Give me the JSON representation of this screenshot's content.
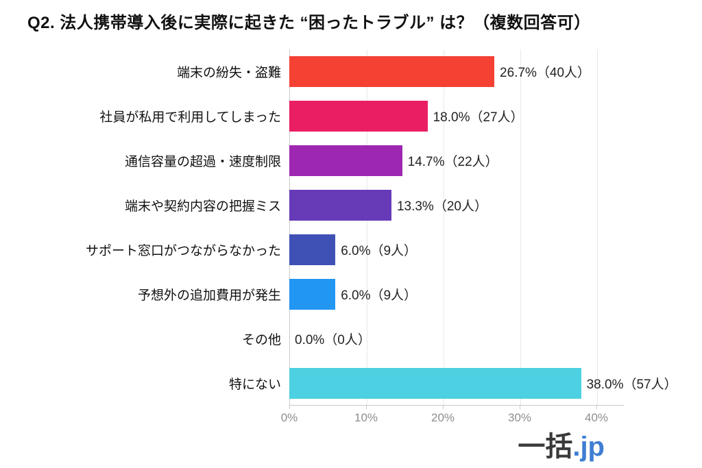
{
  "page": {
    "background": "#ffffff"
  },
  "chart_data": {
    "type": "bar",
    "orientation": "horizontal",
    "title": "Q2. 法人携帯導入後に実際に起きた “困ったトラブル” は？（複数回答可）",
    "categories": [
      "端末の紛失・盗難",
      "社員が私用で利用してしまった",
      "通信容量の超過・速度制限",
      "端末や契約内容の把握ミス",
      "サポート窓口がつながらなかった",
      "予想外の追加費用が発生",
      "その他",
      "特にない"
    ],
    "values": [
      26.7,
      18.0,
      14.7,
      13.3,
      6.0,
      6.0,
      0.0,
      38.0
    ],
    "counts": [
      40,
      27,
      22,
      20,
      9,
      9,
      0,
      57
    ],
    "value_labels": [
      "26.7%（40人）",
      "18.0%（27人）",
      "14.7%（22人）",
      "13.3%（20人）",
      "6.0%（9人）",
      "6.0%（9人）",
      "0.0%（0人）",
      "38.0%（57人）"
    ],
    "bar_colors": [
      "#F44133",
      "#E91E63",
      "#9E27B2",
      "#673AB7",
      "#3F51B5",
      "#2196F3",
      "#CCCCCC",
      "#4DD0E1"
    ],
    "x_tick_labels": [
      "0%",
      "10%",
      "20%",
      "30%",
      "40%"
    ],
    "x_tick_values": [
      0,
      10,
      20,
      30,
      40
    ],
    "xlim": [
      0,
      43.5
    ],
    "grid": true,
    "legend": false,
    "axis_color": "#c9c9c9",
    "gridline_color": "#e8e8e8",
    "tick_label_color": "#8e8e8e"
  },
  "footer": {
    "logo_main": "一括",
    "logo_suffix": ".jp",
    "logo_main_color": "#3a3a3a",
    "logo_suffix_color": "#3F7ED2"
  }
}
